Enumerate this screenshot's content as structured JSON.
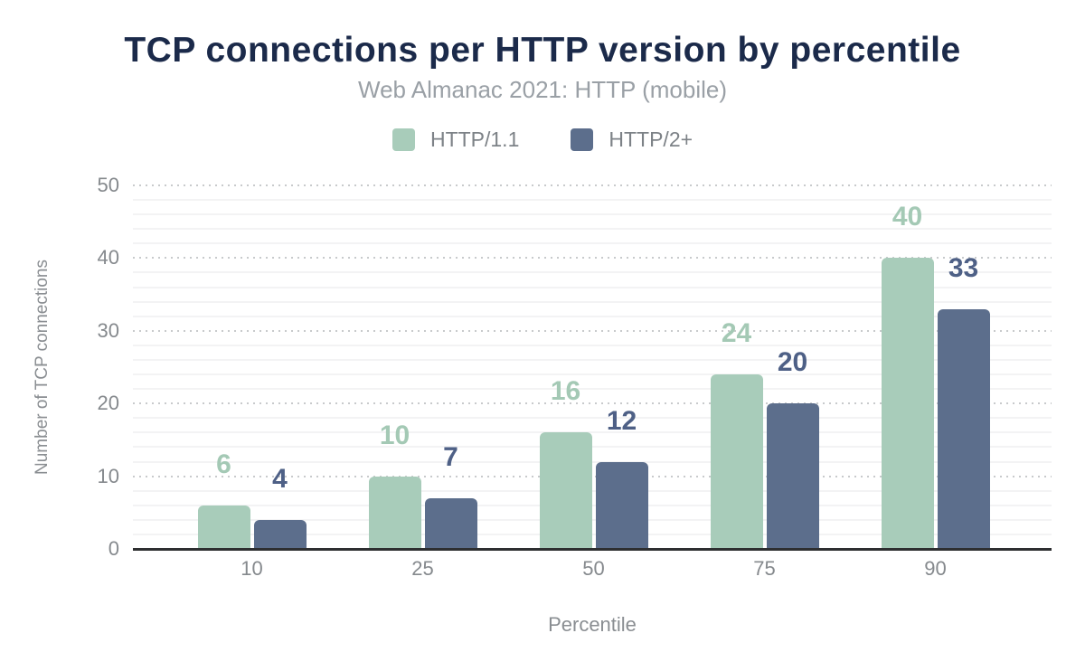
{
  "chart_data": {
    "type": "bar",
    "title": "TCP connections per HTTP version by percentile",
    "subtitle": "Web Almanac 2021: HTTP (mobile)",
    "xlabel": "Percentile",
    "ylabel": "Number of TCP connections",
    "categories": [
      "10",
      "25",
      "50",
      "75",
      "90"
    ],
    "series": [
      {
        "name": "HTTP/1.1",
        "values": [
          6,
          10,
          16,
          24,
          40
        ],
        "color": "#a8ccba",
        "label_color": "#a4c9b5"
      },
      {
        "name": "HTTP/2+",
        "values": [
          4,
          7,
          12,
          20,
          33
        ],
        "color": "#5c6e8c",
        "label_color": "#4e6086"
      }
    ],
    "ylim": [
      0,
      50
    ],
    "yticks": [
      0,
      10,
      20,
      30,
      40,
      50
    ],
    "minor_grid_step": 2,
    "grid": {
      "major": "dotted",
      "minor": "solid"
    },
    "legend_position": "top",
    "bar_labels": "shown-above-bars",
    "colors": {
      "title": "#1b2a4a",
      "subtitle": "#9aa0a6",
      "tick_label": "#85898d",
      "axis_title": "#8a8e92",
      "legend_label": "#7d8287",
      "axis_line": "#2e2f31",
      "major_grid": "#c8cacc",
      "minor_grid": "#f3f3f4",
      "background": "#ffffff"
    }
  }
}
